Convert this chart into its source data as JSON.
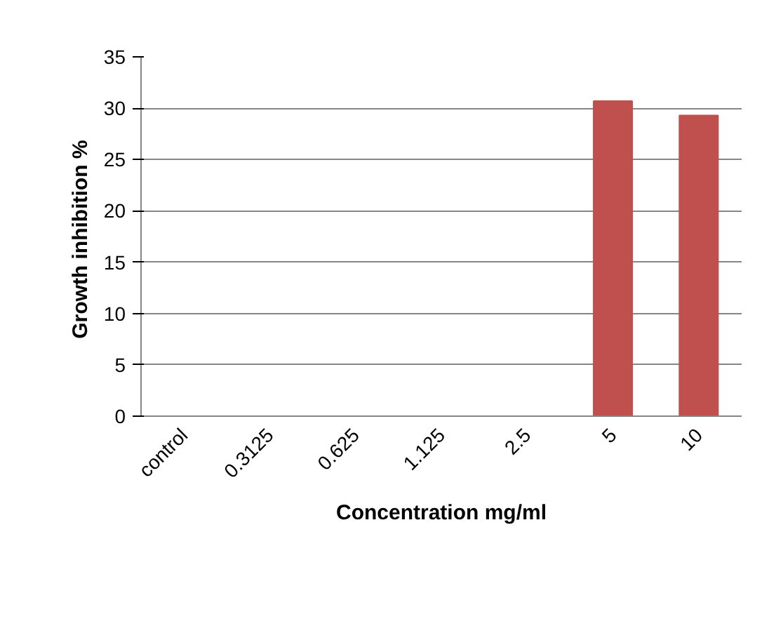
{
  "chart_data": {
    "type": "bar",
    "xlabel": "Concentration mg/ml",
    "ylabel": "Growth inhibition  %",
    "categories": [
      "control",
      "0.3125",
      "0.625",
      "1.125",
      "2.5",
      "5",
      "10"
    ],
    "values": [
      0,
      0,
      0,
      0,
      0,
      30.7,
      29.3
    ],
    "color": "#c0504d",
    "ylim": [
      0,
      35
    ],
    "yticks": [
      0,
      5,
      10,
      15,
      20,
      25,
      30,
      35
    ],
    "grid": "y"
  }
}
